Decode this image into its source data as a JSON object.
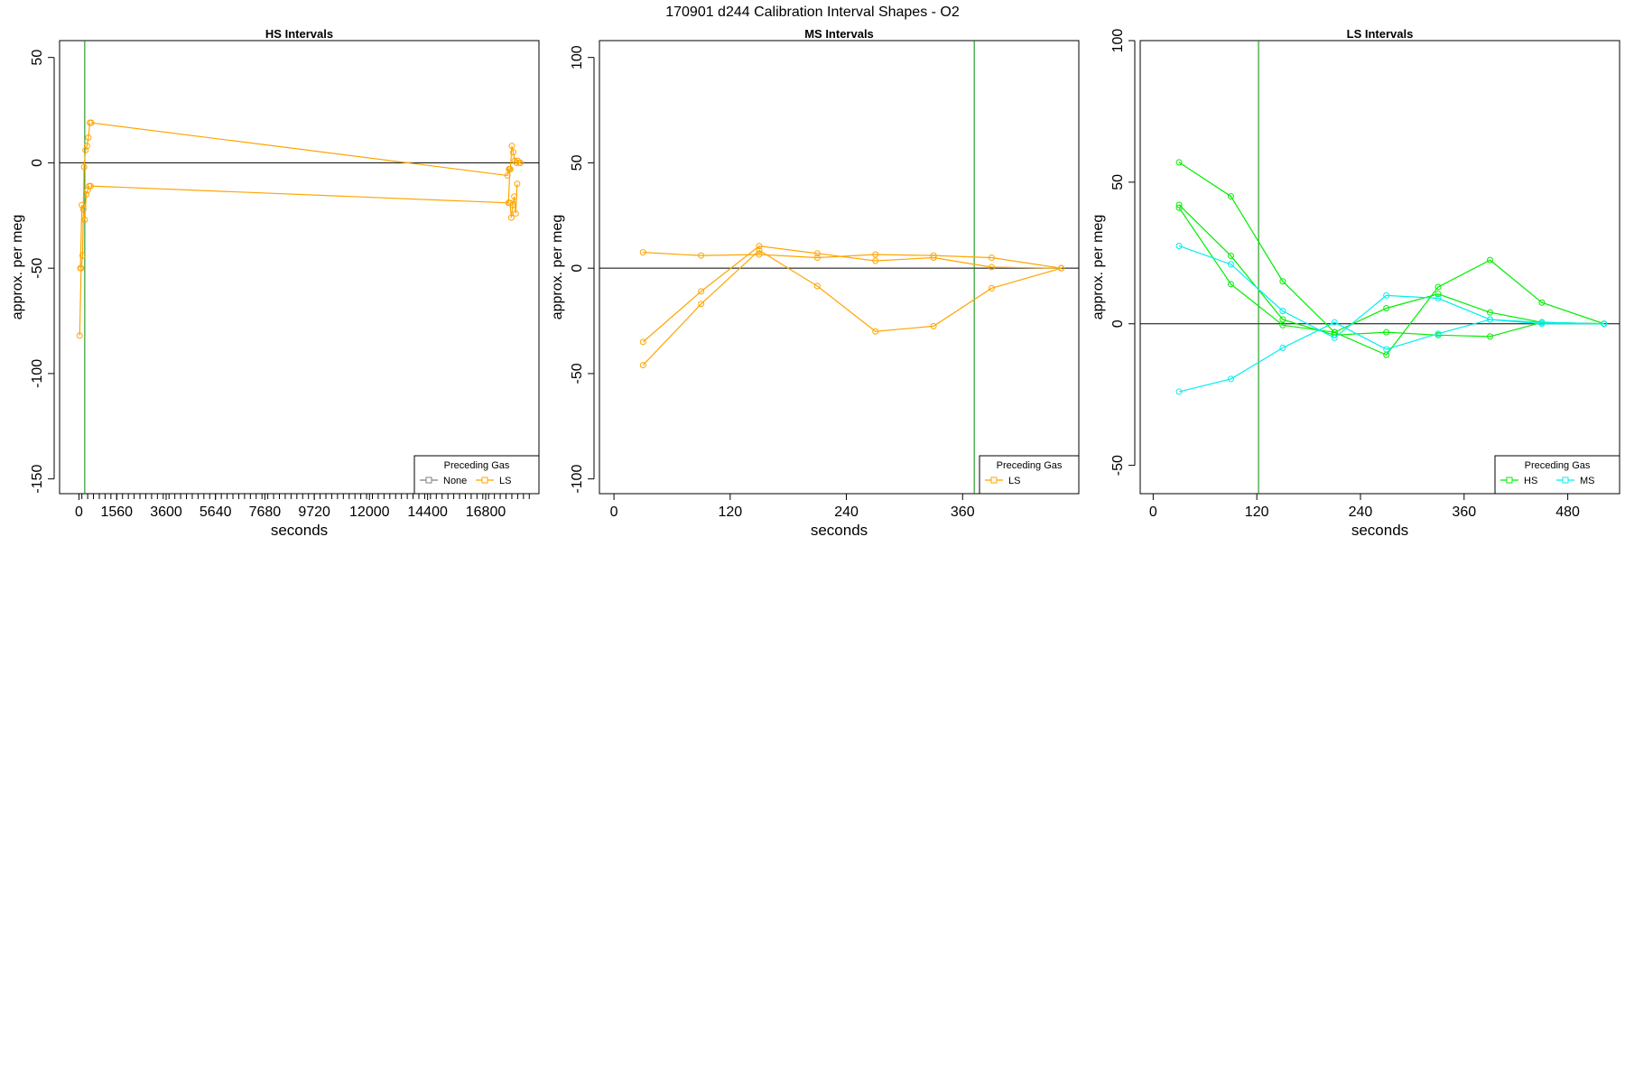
{
  "figure_title": "170901   d244   Calibration Interval Shapes - O2",
  "chart_data": [
    {
      "type": "line",
      "title": "HS Intervals",
      "xlabel": "seconds",
      "ylabel": "approx. per meg",
      "xlim": [
        -800,
        19000
      ],
      "ylim": [
        -157,
        58
      ],
      "xticks": [
        0,
        1560,
        3600,
        5640,
        7680,
        9720,
        12000,
        14400,
        16800
      ],
      "yticks": [
        50,
        0,
        -50,
        -100,
        -150
      ],
      "minor_xticks": {
        "from": 120,
        "to": 18800,
        "step": 240
      },
      "vlines": [
        {
          "x": 240,
          "color": "#008B00"
        }
      ],
      "hline": 0,
      "legend": {
        "title": "Preceding Gas",
        "position": "bottom-right",
        "entries": [
          {
            "name": "None",
            "color": "#7F7F7F"
          },
          {
            "name": "LS",
            "color": "#FFA500"
          }
        ]
      },
      "series": [
        {
          "name": "LS",
          "color": "#FFA500",
          "x": [
            30,
            90,
            150,
            210,
            270,
            330,
            390,
            450,
            510
          ],
          "y": [
            -82,
            -50,
            -44,
            -2,
            6,
            8,
            12,
            19,
            null
          ]
        },
        {
          "name": "LS",
          "color": "#FFA500",
          "x": [
            60,
            120,
            180,
            240,
            300,
            360,
            420,
            480,
            17800,
            17860,
            17920,
            17980,
            18040,
            18100
          ],
          "y": [
            -50,
            -20,
            -22,
            -27,
            -15,
            -13,
            -11,
            null,
            -19,
            -26,
            -20,
            -16,
            -24,
            -10
          ]
        },
        {
          "name": "LS",
          "color": "#FFA500",
          "x": [
            510,
            17700,
            17760,
            17820,
            17880,
            17940,
            18000,
            18060,
            18120,
            18180,
            18240
          ],
          "y": [
            19,
            -6,
            -3,
            -3,
            8,
            5,
            1,
            0,
            1,
            0,
            0
          ]
        },
        {
          "name": "LS",
          "color": "#FFA500",
          "x": [
            480,
            17740,
            17800
          ],
          "y": [
            -11,
            -19,
            -3
          ]
        }
      ]
    },
    {
      "type": "line",
      "title": "MS Intervals",
      "xlabel": "seconds",
      "ylabel": "approx. per meg",
      "xlim": [
        -15,
        480
      ],
      "ylim": [
        -107,
        108
      ],
      "xticks": [
        0,
        120,
        240,
        360
      ],
      "yticks": [
        100,
        50,
        0,
        -50,
        -100
      ],
      "vlines": [
        {
          "x": 372,
          "color": "#008B00"
        }
      ],
      "hline": 0,
      "legend": {
        "title": "Preceding Gas",
        "position": "bottom-right",
        "entries": [
          {
            "name": "LS",
            "color": "#FFA500"
          }
        ]
      },
      "series": [
        {
          "name": "LS",
          "color": "#FFA500",
          "x": [
            30,
            90,
            150,
            210,
            270,
            330,
            390,
            462
          ],
          "y": [
            7.5,
            6,
            6.5,
            5,
            6.5,
            6,
            5,
            0
          ]
        },
        {
          "name": "LS",
          "color": "#FFA500",
          "x": [
            30,
            90,
            150,
            210,
            270,
            330,
            390,
            462
          ],
          "y": [
            -35,
            -11,
            10.5,
            7,
            3.5,
            5,
            0.5,
            0
          ]
        },
        {
          "name": "LS",
          "color": "#FFA500",
          "x": [
            30,
            90,
            150,
            210,
            270,
            330,
            390,
            462
          ],
          "y": [
            -46,
            -17,
            8.5,
            -8.5,
            -30,
            -27.5,
            -9.5,
            0
          ]
        }
      ]
    },
    {
      "type": "line",
      "title": "LS Intervals",
      "xlabel": "seconds",
      "ylabel": "approx. per meg",
      "xlim": [
        -15,
        540
      ],
      "ylim": [
        -60,
        100
      ],
      "xticks": [
        0,
        120,
        240,
        360,
        480
      ],
      "yticks": [
        100,
        50,
        0,
        -50
      ],
      "vlines": [
        {
          "x": 122,
          "color": "#008B00"
        }
      ],
      "hline": 0,
      "legend": {
        "title": "Preceding Gas",
        "position": "bottom-right",
        "entries": [
          {
            "name": "HS",
            "color": "#00EE00"
          },
          {
            "name": "MS",
            "color": "#00EEEE"
          }
        ]
      },
      "series": [
        {
          "name": "HS",
          "color": "#00EE00",
          "x": [
            30,
            90,
            150,
            210,
            270,
            330,
            390,
            450,
            522
          ],
          "y": [
            57,
            45,
            15,
            -3,
            -11,
            13,
            22.5,
            7.5,
            0
          ]
        },
        {
          "name": "HS",
          "color": "#00EE00",
          "x": [
            30,
            90,
            150,
            210,
            270,
            330,
            390,
            450,
            522
          ],
          "y": [
            42,
            24,
            1.5,
            -4,
            -3,
            -4,
            -4.5,
            0.5,
            0
          ]
        },
        {
          "name": "HS",
          "color": "#00EE00",
          "x": [
            30,
            90,
            150,
            210,
            270,
            330,
            390,
            450,
            522
          ],
          "y": [
            41,
            14,
            -0.5,
            -3,
            5.5,
            10.5,
            4,
            0.5,
            0
          ]
        },
        {
          "name": "MS",
          "color": "#00EEEE",
          "x": [
            30,
            90,
            150,
            210,
            270,
            330,
            390,
            450,
            522
          ],
          "y": [
            27.5,
            21,
            4.5,
            -5,
            10,
            9,
            1.5,
            0,
            0
          ]
        },
        {
          "name": "MS",
          "color": "#00EEEE",
          "x": [
            30,
            90,
            150,
            210,
            270,
            330,
            390,
            450,
            522
          ],
          "y": [
            -24,
            -19.5,
            -8.5,
            0.5,
            -9,
            -3.5,
            1.5,
            0.5,
            0
          ]
        }
      ]
    }
  ]
}
